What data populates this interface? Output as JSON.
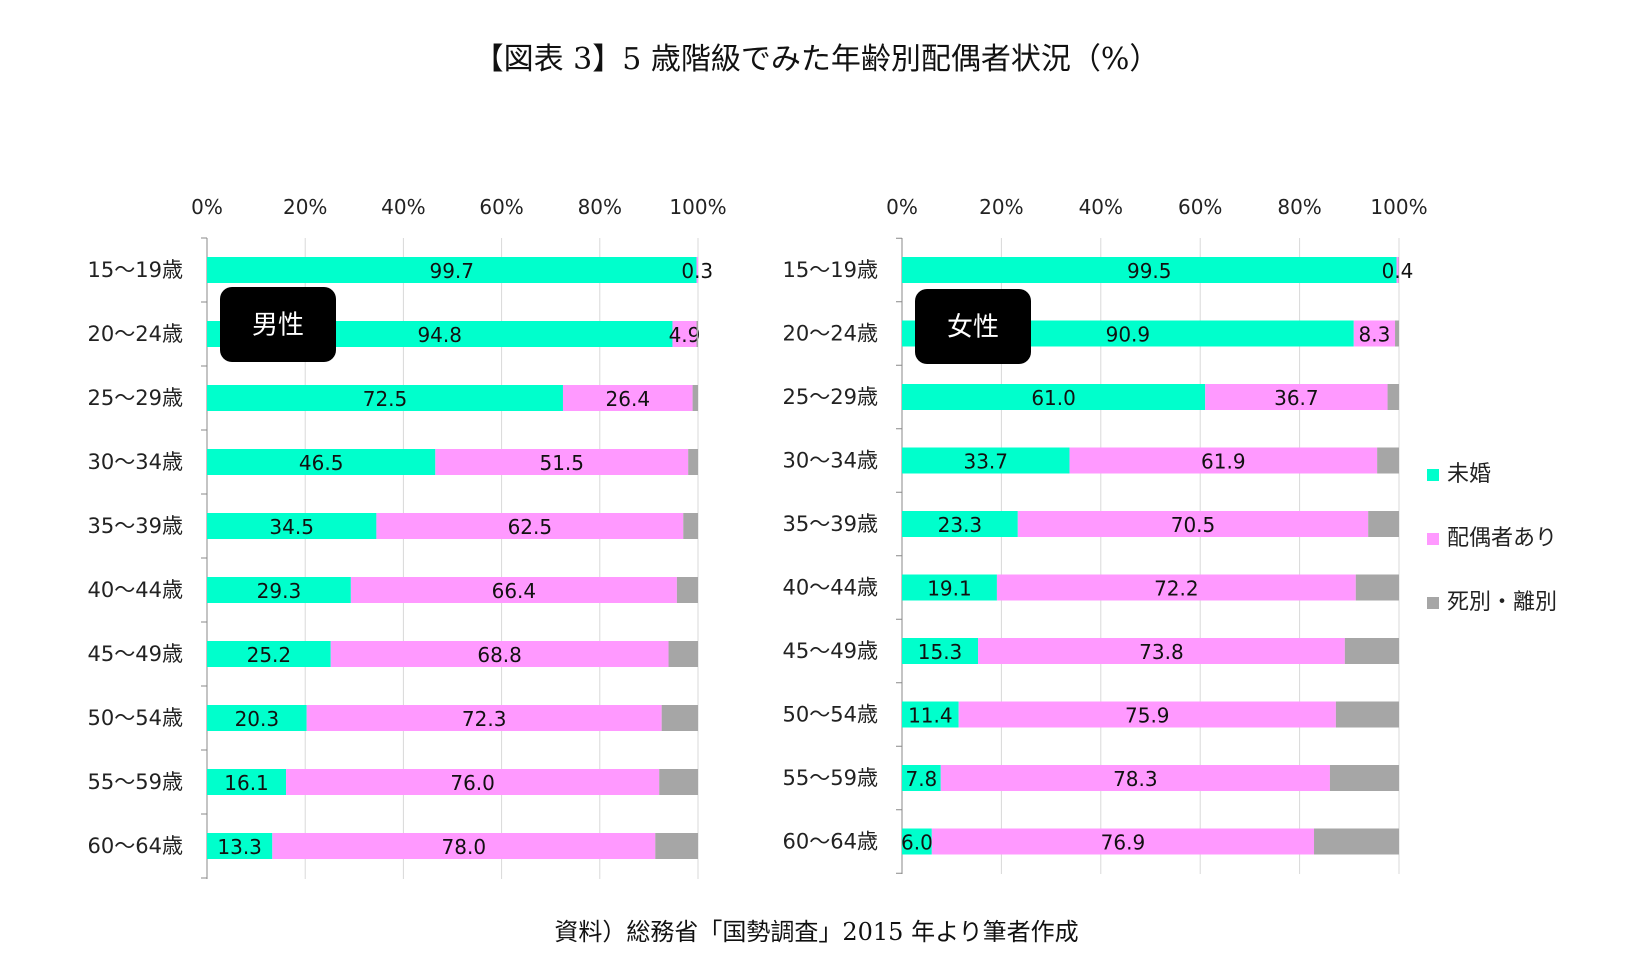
{
  "title": "【図表 3】5 歳階級でみた年齢別配偶者状況（%）",
  "source": "資料）総務省「国勢調査」2015 年より筆者作成",
  "colors": {
    "unmarried": "#00FFCC",
    "married": "#FF99FF",
    "widowed_divorced": "#A6A6A6",
    "panel_label_bg": "#000000"
  },
  "legend": [
    "未婚",
    "配偶者あり",
    "死別・離別"
  ],
  "chart_data": [
    {
      "type": "bar",
      "orientation": "horizontal",
      "stacked": true,
      "panel_label": "男性",
      "categories": [
        "15〜19歳",
        "20〜24歳",
        "25〜29歳",
        "30〜34歳",
        "35〜39歳",
        "40〜44歳",
        "45〜49歳",
        "50〜54歳",
        "55〜59歳",
        "60〜64歳"
      ],
      "x_ticks": [
        "0%",
        "20%",
        "40%",
        "60%",
        "80%",
        "100%"
      ],
      "xlim": [
        0,
        100
      ],
      "grid": true,
      "legend_position": "right",
      "series": [
        {
          "name": "未婚",
          "values": [
            99.7,
            94.8,
            72.5,
            46.5,
            34.5,
            29.3,
            25.2,
            20.3,
            16.1,
            13.3
          ],
          "labels": [
            "99.7",
            "94.8",
            "72.5",
            "46.5",
            "34.5",
            "29.3",
            "25.2",
            "20.3",
            "16.1",
            "13.3"
          ]
        },
        {
          "name": "配偶者あり",
          "values": [
            0.3,
            4.9,
            26.4,
            51.5,
            62.5,
            66.4,
            68.8,
            72.3,
            76.0,
            78.0
          ],
          "labels": [
            "0.3",
            "4.9",
            "26.4",
            "51.5",
            "62.5",
            "66.4",
            "68.8",
            "72.3",
            "76.0",
            "78.0"
          ]
        },
        {
          "name": "死別・離別",
          "values": [
            0.0,
            0.3,
            1.1,
            2.0,
            3.0,
            4.3,
            6.0,
            7.4,
            7.9,
            8.7
          ]
        }
      ]
    },
    {
      "type": "bar",
      "orientation": "horizontal",
      "stacked": true,
      "panel_label": "女性",
      "categories": [
        "15〜19歳",
        "20〜24歳",
        "25〜29歳",
        "30〜34歳",
        "35〜39歳",
        "40〜44歳",
        "45〜49歳",
        "50〜54歳",
        "55〜59歳",
        "60〜64歳"
      ],
      "x_ticks": [
        "0%",
        "20%",
        "40%",
        "60%",
        "80%",
        "100%"
      ],
      "xlim": [
        0,
        100
      ],
      "grid": true,
      "legend_position": "right",
      "series": [
        {
          "name": "未婚",
          "values": [
            99.5,
            90.9,
            61.0,
            33.7,
            23.3,
            19.1,
            15.3,
            11.4,
            7.8,
            6.0
          ],
          "labels": [
            "99.5",
            "90.9",
            "61.0",
            "33.7",
            "23.3",
            "19.1",
            "15.3",
            "11.4",
            "7.8",
            "6.0"
          ]
        },
        {
          "name": "配偶者あり",
          "values": [
            0.4,
            8.3,
            36.7,
            61.9,
            70.5,
            72.2,
            73.8,
            75.9,
            78.3,
            76.9
          ],
          "labels": [
            "0.4",
            "8.3",
            "36.7",
            "61.9",
            "70.5",
            "72.2",
            "73.8",
            "75.9",
            "78.3",
            "76.9"
          ]
        },
        {
          "name": "死別・離別",
          "values": [
            0.1,
            0.8,
            2.3,
            4.4,
            6.2,
            8.7,
            10.9,
            12.7,
            13.9,
            17.1
          ]
        }
      ]
    }
  ]
}
